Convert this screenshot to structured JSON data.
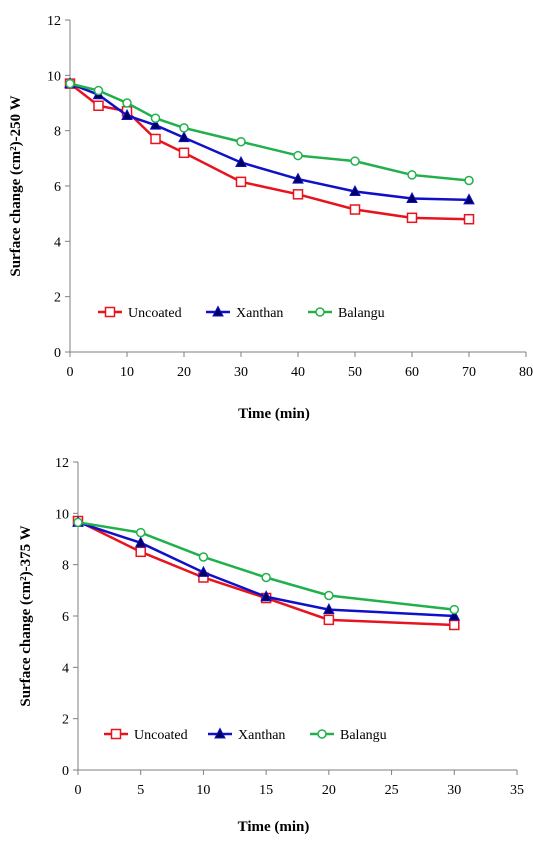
{
  "chart_data": [
    {
      "type": "line",
      "ylabel": "Surface change (cm²)-250 W",
      "xlabel": "Time (min)",
      "xlim": [
        0,
        80
      ],
      "ylim": [
        0,
        12
      ],
      "x_ticks": [
        "0",
        "10",
        "20",
        "30",
        "40",
        "50",
        "60",
        "70",
        "80"
      ],
      "y_ticks": [
        "0",
        "2",
        "4",
        "6",
        "8",
        "10",
        "12"
      ],
      "x": [
        0,
        5,
        10,
        15,
        20,
        30,
        40,
        50,
        60,
        70
      ],
      "series": [
        {
          "name": "Uncoated",
          "color": "#e8131e",
          "marker": "square-open",
          "values": [
            9.7,
            8.9,
            8.7,
            7.7,
            7.2,
            6.15,
            5.7,
            5.15,
            4.85,
            4.8
          ]
        },
        {
          "name": "Xanthan",
          "color": "#1010c8",
          "marker": "triangle",
          "values": [
            9.7,
            9.3,
            8.55,
            8.2,
            7.75,
            6.85,
            6.25,
            5.8,
            5.55,
            5.5
          ]
        },
        {
          "name": "Balangu",
          "color": "#22b04c",
          "marker": "circle-open",
          "values": [
            9.7,
            9.45,
            9.0,
            8.45,
            8.1,
            7.6,
            7.1,
            6.9,
            6.4,
            6.2
          ]
        }
      ],
      "legend": "inside-bottom-left",
      "grid": false
    },
    {
      "type": "line",
      "ylabel": "Surface change (cm²)-375 W",
      "xlabel": "Time (min)",
      "xlim": [
        0,
        35
      ],
      "ylim": [
        0,
        12
      ],
      "x_ticks": [
        "0",
        "5",
        "10",
        "15",
        "20",
        "25",
        "30",
        "35"
      ],
      "y_ticks": [
        "0",
        "2",
        "4",
        "6",
        "8",
        "10",
        "12"
      ],
      "x": [
        0,
        5,
        10,
        15,
        20,
        30
      ],
      "series": [
        {
          "name": "Uncoated",
          "color": "#e8131e",
          "marker": "square-open",
          "values": [
            9.7,
            8.5,
            7.5,
            6.7,
            5.85,
            5.65
          ]
        },
        {
          "name": "Xanthan",
          "color": "#1010c8",
          "marker": "triangle",
          "values": [
            9.65,
            8.85,
            7.7,
            6.75,
            6.25,
            6.0
          ]
        },
        {
          "name": "Balangu",
          "color": "#22b04c",
          "marker": "circle-open",
          "values": [
            9.65,
            9.25,
            8.3,
            7.5,
            6.8,
            6.25
          ]
        }
      ],
      "legend": "inside-bottom-left",
      "grid": false
    }
  ]
}
